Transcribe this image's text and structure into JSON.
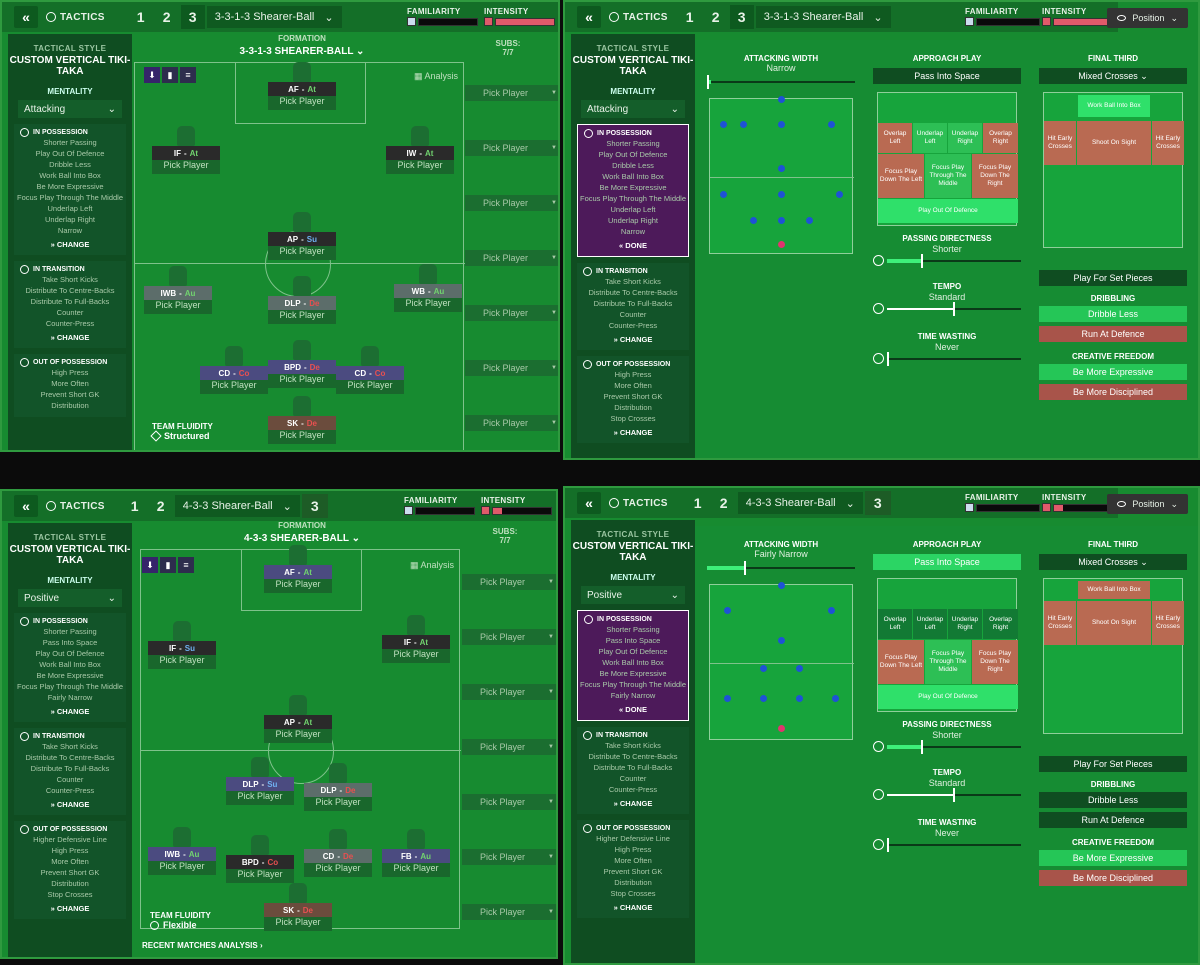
{
  "q1": {
    "tactic_nums": [
      "1",
      "2",
      "3"
    ],
    "tactic_name": "3-3-1-3 Shearer-Ball",
    "familiarity_label": "FAMILIARITY",
    "intensity_label": "INTENSITY",
    "tactical_style_label": "TACTICAL STYLE",
    "style_name": "CUSTOM VERTICAL TIKI-TAKA",
    "mentality_label": "MENTALITY",
    "mentality": "Attacking",
    "in_possession_label": "IN POSSESSION",
    "in_possession": [
      "Shorter Passing",
      "Play Out Of Defence",
      "Dribble Less",
      "Work Ball Into Box",
      "Be More Expressive",
      "Focus Play Through The Middle",
      "Underlap Left",
      "Underlap Right",
      "Narrow"
    ],
    "change": "CHANGE",
    "in_transition_label": "IN TRANSITION",
    "in_transition": [
      "Take Short Kicks",
      "Distribute To Centre-Backs",
      "Distribute To Full-Backs",
      "Counter",
      "Counter-Press"
    ],
    "out_possession_label": "OUT OF POSSESSION",
    "out_possession": [
      "High Press",
      "More Often",
      "Prevent Short GK",
      "Distribution"
    ],
    "formation_label": "FORMATION",
    "formation": "3-3-1-3 SHEARER-BALL",
    "analysis": "Analysis",
    "subs_label": "SUBS:",
    "subs_count": "7/7",
    "pick": "Pick Player",
    "team_fluidity_label": "TEAM FLUIDITY",
    "fluidity": "Structured",
    "players": [
      {
        "pos": "AF",
        "duty": "At"
      },
      {
        "pos": "IF",
        "duty": "At"
      },
      {
        "pos": "IW",
        "duty": "At"
      },
      {
        "pos": "AP",
        "duty": "Su"
      },
      {
        "pos": "IWB",
        "duty": "Au"
      },
      {
        "pos": "DLP",
        "duty": "De"
      },
      {
        "pos": "WB",
        "duty": "Au"
      },
      {
        "pos": "CD",
        "duty": "Co"
      },
      {
        "pos": "BPD",
        "duty": "De"
      },
      {
        "pos": "CD",
        "duty": "Co"
      },
      {
        "pos": "SK",
        "duty": "De"
      }
    ]
  },
  "q2": {
    "tactic_nums": [
      "1",
      "2",
      "3"
    ],
    "tactic_name": "3-3-1-3 Shearer-Ball",
    "position_btn": "Position",
    "done": "DONE",
    "attacking_width_label": "ATTACKING WIDTH",
    "attacking_width": "Narrow",
    "approach_label": "APPROACH PLAY",
    "approach": "Pass Into Space",
    "final_third_label": "FINAL THIRD",
    "final_third": "Mixed Crosses",
    "zones": {
      "overlap_left": "Overlap Left",
      "underlap_left": "Underlap Left",
      "underlap_right": "Underlap Right",
      "overlap_right": "Overlap Right",
      "focus_left": "Focus Play Down The Left",
      "focus_mid": "Focus Play Through The Middle",
      "focus_right": "Focus Play Down The Right",
      "play_out": "Play Out Of Defence"
    },
    "ft_zones": {
      "work_ball": "Work Ball Into Box",
      "hit_early_l": "Hit Early Crosses",
      "shoot": "Shoot On Sight",
      "hit_early_r": "Hit Early Crosses"
    },
    "passing_label": "PASSING DIRECTNESS",
    "passing": "Shorter",
    "tempo_label": "TEMPO",
    "tempo": "Standard",
    "time_wasting_label": "TIME WASTING",
    "time_wasting": "Never",
    "set_pieces": "Play For Set Pieces",
    "dribbling_label": "DRIBBLING",
    "dribble_less": "Dribble Less",
    "run_at_defence": "Run At Defence",
    "creative_label": "CREATIVE FREEDOM",
    "be_expressive": "Be More Expressive",
    "be_disciplined": "Be More Disciplined",
    "in_possession": [
      "Shorter Passing",
      "Play Out Of Defence",
      "Dribble Less",
      "Work Ball Into Box",
      "Be More Expressive",
      "Focus Play Through The Middle",
      "Underlap Left",
      "Underlap Right",
      "Narrow"
    ],
    "in_transition": [
      "Take Short Kicks",
      "Distribute To Centre-Backs",
      "Distribute To Full-Backs",
      "Counter",
      "Counter-Press"
    ],
    "out_possession": [
      "High Press",
      "More Often",
      "Prevent Short GK",
      "Distribution",
      "Stop Crosses"
    ],
    "levels": {
      "attacking_width": 0.02,
      "passing": 0.25,
      "tempo": 0.5,
      "time_wasting": 0.02
    }
  },
  "q3": {
    "tactic_nums": [
      "1",
      "2",
      "3"
    ],
    "tactic_name": "4-3-3 Shearer-Ball",
    "mentality": "Positive",
    "formation": "4-3-3 SHEARER-BALL",
    "fluidity": "Flexible",
    "recent": "RECENT MATCHES ANALYSIS",
    "in_possession": [
      "Shorter Passing",
      "Pass Into Space",
      "Play Out Of Defence",
      "Work Ball Into Box",
      "Be More Expressive",
      "Focus Play Through The Middle",
      "Fairly Narrow"
    ],
    "in_transition": [
      "Take Short Kicks",
      "Distribute To Centre-Backs",
      "Distribute To Full-Backs",
      "Counter",
      "Counter-Press"
    ],
    "out_possession": [
      "Higher Defensive Line",
      "High Press",
      "More Often",
      "Prevent Short GK",
      "Distribution",
      "Stop Crosses"
    ],
    "players": [
      {
        "pos": "AF",
        "duty": "At"
      },
      {
        "pos": "IF",
        "duty": "Su"
      },
      {
        "pos": "IF",
        "duty": "At"
      },
      {
        "pos": "AP",
        "duty": "At"
      },
      {
        "pos": "DLP",
        "duty": "Su"
      },
      {
        "pos": "DLP",
        "duty": "De"
      },
      {
        "pos": "IWB",
        "duty": "Au"
      },
      {
        "pos": "BPD",
        "duty": "Co"
      },
      {
        "pos": "CD",
        "duty": "De"
      },
      {
        "pos": "FB",
        "duty": "Au"
      },
      {
        "pos": "SK",
        "duty": "De"
      }
    ]
  },
  "q4": {
    "tactic_name": "4-3-3 Shearer-Ball",
    "attacking_width": "Fairly Narrow",
    "mentality": "Positive",
    "in_possession": [
      "Shorter Passing",
      "Pass Into Space",
      "Play Out Of Defence",
      "Work Ball Into Box",
      "Be More Expressive",
      "Focus Play Through The Middle",
      "Fairly Narrow"
    ],
    "out_possession": [
      "Higher Defensive Line",
      "High Press",
      "More Often",
      "Prevent Short GK",
      "Distribution",
      "Stop Crosses"
    ],
    "levels": {
      "attacking_width": 0.25,
      "passing": 0.25,
      "tempo": 0.5,
      "time_wasting": 0.02
    }
  },
  "colors": {
    "pitch": "#178b30",
    "panel": "#0f4d21",
    "attack": "#71d36f",
    "defend": "#e85050",
    "support": "#6fb0f0",
    "highlight": "#2fe06a",
    "warning": "#a8544a"
  }
}
